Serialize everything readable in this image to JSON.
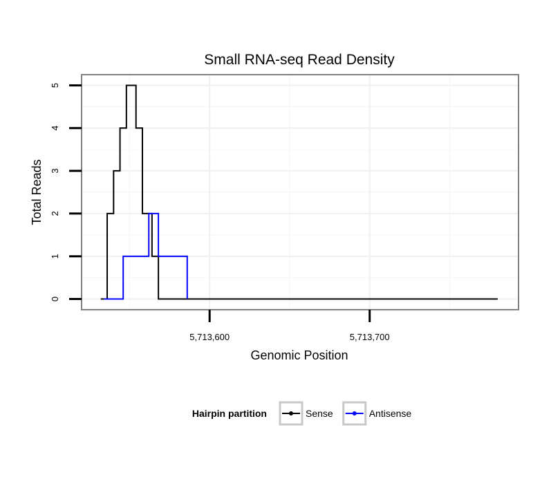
{
  "chart_data": {
    "type": "line",
    "title": "Small RNA-seq Read Density",
    "xlabel": "Genomic Position",
    "ylabel": "Total Reads",
    "xlim": [
      5713520,
      5713793
    ],
    "ylim": [
      -0.25,
      5.25
    ],
    "x_ticks": [
      5713600,
      5713700
    ],
    "x_tick_labels": [
      "5,713,600",
      "5,713,700"
    ],
    "y_ticks": [
      0,
      1,
      2,
      3,
      4,
      5
    ],
    "y_tick_labels": [
      "0",
      "1",
      "2",
      "3",
      "4",
      "5"
    ],
    "grid": true,
    "legend": {
      "title": "Hairpin partition",
      "placement": "bottom"
    },
    "series": [
      {
        "name": "Sense",
        "color": "#000000",
        "step": true,
        "x": [
          5713532,
          5713534,
          5713536,
          5713538,
          5713540,
          5713542,
          5713544,
          5713546,
          5713548,
          5713550,
          5713552,
          5713554,
          5713556,
          5713558,
          5713560,
          5713562,
          5713564,
          5713566,
          5713568,
          5713570,
          5713780
        ],
        "values": [
          0,
          0,
          2,
          2,
          3,
          3,
          4,
          4,
          5,
          5,
          5,
          4,
          4,
          2,
          2,
          2,
          1,
          1,
          0,
          0,
          0
        ]
      },
      {
        "name": "Antisense",
        "color": "#0000ff",
        "step": true,
        "x": [
          5713534,
          5713536,
          5713544,
          5713546,
          5713560,
          5713562,
          5713564,
          5713566,
          5713568,
          5713570,
          5713584,
          5713586
        ],
        "values": [
          0,
          0,
          0,
          1,
          1,
          2,
          2,
          2,
          1,
          1,
          1,
          0
        ]
      }
    ]
  }
}
